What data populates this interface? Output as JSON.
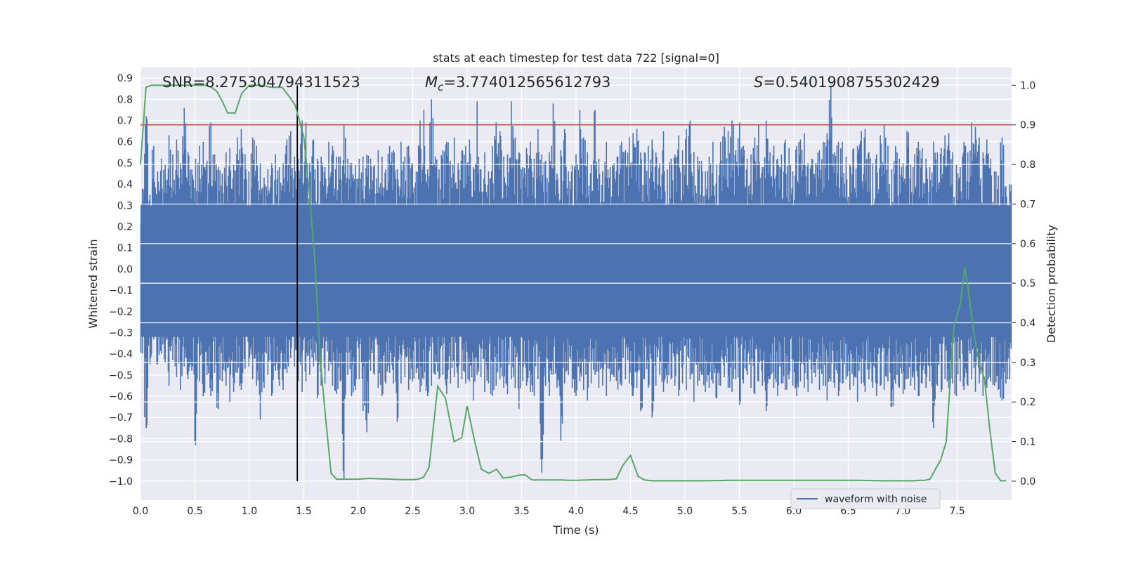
{
  "chart_data": {
    "type": "line",
    "title": "stats at each timestep for test data 722 [signal=0]",
    "xlabel": "Time (s)",
    "ylabel_left": "Whitened strain",
    "ylabel_right": "Detection probability",
    "xlim": [
      0.0,
      8.0
    ],
    "ylim_left": [
      -1.09,
      0.95
    ],
    "ylim_right": [
      -0.048,
      1.045
    ],
    "x_ticks": [
      "0.0",
      "0.5",
      "1.0",
      "1.5",
      "2.0",
      "2.5",
      "3.0",
      "3.5",
      "4.0",
      "4.5",
      "5.0",
      "5.5",
      "6.0",
      "6.5",
      "7.0",
      "7.5"
    ],
    "x_tick_values": [
      0.0,
      0.5,
      1.0,
      1.5,
      2.0,
      2.5,
      3.0,
      3.5,
      4.0,
      4.5,
      5.0,
      5.5,
      6.0,
      6.5,
      7.0,
      7.5
    ],
    "y_left_ticks": [
      "0.9",
      "0.8",
      "0.7",
      "0.6",
      "0.5",
      "0.4",
      "0.3",
      "0.2",
      "0.1",
      "0.0",
      "−0.1",
      "−0.2",
      "−0.3",
      "−0.4",
      "−0.5",
      "−0.6",
      "−0.7",
      "−0.8",
      "−0.9",
      "−1.0"
    ],
    "y_left_tick_values": [
      0.9,
      0.8,
      0.7,
      0.6,
      0.5,
      0.4,
      0.3,
      0.2,
      0.1,
      0.0,
      -0.1,
      -0.2,
      -0.3,
      -0.4,
      -0.5,
      -0.6,
      -0.7,
      -0.8,
      -0.9,
      -1.0
    ],
    "y_right_ticks": [
      "1.0",
      "0.9",
      "0.8",
      "0.7",
      "0.6",
      "0.5",
      "0.4",
      "0.3",
      "0.2",
      "0.1",
      "0.0"
    ],
    "y_right_tick_values": [
      1.0,
      0.9,
      0.8,
      0.7,
      0.6,
      0.5,
      0.4,
      0.3,
      0.2,
      0.1,
      0.0
    ],
    "annotations": {
      "snr": "SNR=8.275304794311523",
      "mc_symbol": "M",
      "mc_sub": "c",
      "mc_value": "=3.774012565612793",
      "s_symbol": "S",
      "s_value": "=0.5401908755302429"
    },
    "legend": {
      "label": "waveform with noise",
      "placement": "lower-right"
    },
    "threshold": {
      "value": 0.9,
      "axis": "right",
      "color": "#c44e52"
    },
    "marker_time": 1.44,
    "waveform": {
      "name": "waveform with noise",
      "color": "#4c72b0",
      "x_start": 0.0,
      "x_end": 8.0,
      "upper_envelope": [
        0.38,
        0.72,
        0.35,
        0.58,
        0.46,
        0.52,
        0.49,
        0.63,
        0.54,
        0.61,
        0.5,
        0.76,
        0.55,
        0.47,
        0.52,
        0.58,
        0.6,
        0.51,
        0.69,
        0.54,
        0.48,
        0.45,
        0.55,
        0.57,
        0.49,
        0.62,
        0.66,
        0.54,
        0.46,
        0.62,
        0.58,
        0.5,
        0.43,
        0.47,
        0.5,
        0.54,
        0.48,
        0.5,
        0.61,
        0.65,
        0.53,
        0.52,
        0.7,
        0.69,
        0.5,
        0.61,
        0.52,
        0.53,
        0.48,
        0.6,
        0.58,
        0.53,
        0.53,
        0.68,
        0.52,
        0.5,
        0.49,
        0.52,
        0.53,
        0.54,
        0.52,
        0.49,
        0.56,
        0.53,
        0.47,
        0.58,
        0.56,
        0.47,
        0.6,
        0.53,
        0.58,
        0.5,
        0.46,
        0.7,
        0.75,
        0.47,
        0.8,
        0.53,
        0.47,
        0.56,
        0.6,
        0.51,
        0.62,
        0.5,
        0.56,
        0.58,
        0.61,
        0.48,
        0.79,
        0.47,
        0.55,
        0.46,
        0.58,
        0.69,
        0.65,
        0.53,
        0.54,
        0.79,
        0.62,
        0.55,
        0.48,
        0.57,
        0.6,
        0.52,
        0.66,
        0.54,
        0.51,
        0.55,
        0.78,
        0.45,
        0.56,
        0.66,
        0.46,
        0.49,
        0.54,
        0.75,
        0.62,
        0.55,
        0.49,
        0.75,
        0.52,
        0.46,
        0.6,
        0.48,
        0.5,
        0.53,
        0.6,
        0.56,
        0.62,
        0.64,
        0.66,
        0.55,
        0.55,
        0.58,
        0.61,
        0.55,
        0.5,
        0.65,
        0.47,
        0.52,
        0.54,
        0.63,
        0.56,
        0.66,
        0.7,
        0.55,
        0.53,
        0.51,
        0.46,
        0.53,
        0.6,
        0.49,
        0.6,
        0.67,
        0.65,
        0.7,
        0.56,
        0.69,
        0.58,
        0.52,
        0.54,
        0.62,
        0.68,
        0.48,
        0.7,
        0.55,
        0.58,
        0.52,
        0.54,
        0.61,
        0.57,
        0.46,
        0.58,
        0.61,
        0.64,
        0.5,
        0.52,
        0.5,
        0.56,
        0.6,
        0.64,
        0.87,
        0.55,
        0.6,
        0.6,
        0.53,
        0.49,
        0.57,
        0.58,
        0.65,
        0.66,
        0.55,
        0.5,
        0.54,
        0.63,
        0.68,
        0.58,
        0.47,
        0.58,
        0.52,
        0.5,
        0.65,
        0.49,
        0.54,
        0.6,
        0.57,
        0.52,
        0.48,
        0.6,
        0.55,
        0.57,
        0.63,
        0.64,
        0.55,
        0.49,
        0.48,
        0.6,
        0.55,
        0.69,
        0.67,
        0.62,
        0.55,
        0.61,
        0.52,
        0.46,
        0.44,
        0.62,
        0.39,
        0.4
      ],
      "lower_envelope": [
        -0.4,
        -0.75,
        -0.45,
        -0.33,
        -0.45,
        -0.4,
        -0.44,
        -0.55,
        -0.43,
        -0.51,
        -0.57,
        -0.46,
        -0.52,
        -0.48,
        -0.83,
        -0.53,
        -0.6,
        -0.5,
        -0.6,
        -0.49,
        -0.66,
        -0.53,
        -0.55,
        -0.63,
        -0.58,
        -0.49,
        -0.57,
        -0.47,
        -0.46,
        -0.52,
        -0.55,
        -0.71,
        -0.56,
        -0.5,
        -0.6,
        -0.48,
        -0.55,
        -0.57,
        -0.49,
        -0.42,
        -0.46,
        -0.53,
        -0.58,
        -0.53,
        -0.5,
        -0.46,
        -0.61,
        -0.55,
        -0.54,
        -0.48,
        -0.55,
        -0.59,
        -0.53,
        -0.99,
        -0.5,
        -0.6,
        -0.57,
        -0.52,
        -0.67,
        -0.77,
        -0.48,
        -0.5,
        -0.56,
        -0.6,
        -0.54,
        -0.49,
        -0.54,
        -0.72,
        -0.54,
        -0.51,
        -0.57,
        -0.53,
        -0.49,
        -0.58,
        -0.52,
        -0.6,
        -0.55,
        -0.5,
        -0.52,
        -0.5,
        -0.59,
        -0.54,
        -0.51,
        -0.56,
        -0.52,
        -0.54,
        -0.53,
        -0.62,
        -0.5,
        -0.51,
        -0.58,
        -0.54,
        -0.6,
        -0.55,
        -0.52,
        -0.56,
        -0.59,
        -0.52,
        -0.56,
        -0.66,
        -0.53,
        -0.55,
        -0.58,
        -0.6,
        -0.52,
        -0.96,
        -0.55,
        -0.6,
        -0.5,
        -0.56,
        -0.81,
        -0.54,
        -0.5,
        -0.56,
        -0.6,
        -0.53,
        -0.57,
        -0.62,
        -0.54,
        -0.5,
        -0.56,
        -0.55,
        -0.6,
        -0.53,
        -0.51,
        -0.57,
        -0.55,
        -0.52,
        -0.54,
        -0.6,
        -0.56,
        -0.67,
        -0.52,
        -0.56,
        -0.7,
        -0.55,
        -0.5,
        -0.58,
        -0.54,
        -0.52,
        -0.55,
        -0.6,
        -0.54,
        -0.57,
        -0.52,
        -0.63,
        -0.55,
        -0.5,
        -0.58,
        -0.56,
        -0.54,
        -0.61,
        -0.55,
        -0.51,
        -0.56,
        -0.58,
        -0.52,
        -0.64,
        -0.54,
        -0.5,
        -0.56,
        -0.59,
        -0.53,
        -0.55,
        -0.67,
        -0.52,
        -0.56,
        -0.6,
        -0.54,
        -0.57,
        -0.52,
        -0.55,
        -0.6,
        -0.53,
        -0.56,
        -0.58,
        -0.54,
        -0.51,
        -0.57,
        -0.55,
        -0.62,
        -0.53,
        -0.56,
        -0.6,
        -0.54,
        -0.52,
        -0.57,
        -0.55,
        -0.63,
        -0.54,
        -0.58,
        -0.52,
        -0.56,
        -0.6,
        -0.55,
        -0.57,
        -0.53,
        -0.65,
        -0.54,
        -0.56,
        -0.59,
        -0.52,
        -0.55,
        -0.57,
        -0.6,
        -0.54,
        -0.56,
        -0.53,
        -0.75,
        -0.55,
        -0.58,
        -0.52,
        -0.56,
        -0.54,
        -0.6,
        -0.53,
        -0.57,
        -0.55,
        -0.52,
        -0.58,
        -0.54,
        -0.6,
        -0.56,
        -0.53,
        -0.55,
        -0.57,
        -0.62,
        -0.54,
        -0.52,
        -0.56,
        -0.5,
        -0.55,
        -0.52,
        -0.48
      ]
    },
    "detection": {
      "name": "Detection probability",
      "color": "#55a868",
      "x": [
        0.0,
        0.05,
        0.1,
        0.2,
        0.3,
        0.4,
        0.5,
        0.55,
        0.6,
        0.65,
        0.7,
        0.75,
        0.8,
        0.87,
        0.93,
        1.0,
        1.1,
        1.2,
        1.3,
        1.37,
        1.42,
        1.5,
        1.55,
        1.6,
        1.65,
        1.7,
        1.75,
        1.8,
        1.9,
        2.0,
        2.1,
        2.2,
        2.3,
        2.4,
        2.5,
        2.55,
        2.6,
        2.65,
        2.73,
        2.8,
        2.88,
        2.95,
        3.0,
        3.07,
        3.13,
        3.2,
        3.27,
        3.33,
        3.4,
        3.47,
        3.53,
        3.6,
        3.67,
        3.73,
        3.8,
        3.87,
        3.93,
        4.0,
        4.1,
        4.2,
        4.3,
        4.37,
        4.43,
        4.5,
        4.57,
        4.63,
        4.7,
        4.8,
        5.0,
        5.2,
        5.4,
        5.6,
        5.8,
        6.0,
        6.2,
        6.4,
        6.6,
        6.8,
        7.0,
        7.1,
        7.15,
        7.2,
        7.25,
        7.3,
        7.35,
        7.4,
        7.47,
        7.53,
        7.57,
        7.6,
        7.65,
        7.7,
        7.75,
        7.8,
        7.85,
        7.9,
        7.95
      ],
      "y": [
        0.8,
        0.995,
        1.0,
        1.0,
        1.0,
        1.0,
        1.0,
        1.0,
        1.0,
        0.995,
        0.985,
        0.96,
        0.93,
        0.93,
        0.98,
        1.0,
        1.0,
        0.995,
        0.995,
        0.97,
        0.95,
        0.87,
        0.73,
        0.56,
        0.31,
        0.16,
        0.02,
        0.005,
        0.005,
        0.005,
        0.007,
        0.006,
        0.005,
        0.004,
        0.004,
        0.005,
        0.01,
        0.035,
        0.24,
        0.21,
        0.1,
        0.11,
        0.19,
        0.1,
        0.03,
        0.02,
        0.03,
        0.008,
        0.01,
        0.015,
        0.016,
        0.003,
        0.003,
        0.003,
        0.003,
        0.003,
        0.002,
        0.002,
        0.003,
        0.004,
        0.004,
        0.006,
        0.04,
        0.065,
        0.012,
        0.003,
        0.001,
        0.001,
        0.001,
        0.001,
        0.002,
        0.002,
        0.002,
        0.002,
        0.002,
        0.002,
        0.002,
        0.001,
        0.001,
        0.001,
        0.002,
        0.002,
        0.005,
        0.03,
        0.055,
        0.1,
        0.39,
        0.45,
        0.54,
        0.49,
        0.38,
        0.3,
        0.26,
        0.13,
        0.02,
        0.001,
        0.001
      ]
    }
  }
}
